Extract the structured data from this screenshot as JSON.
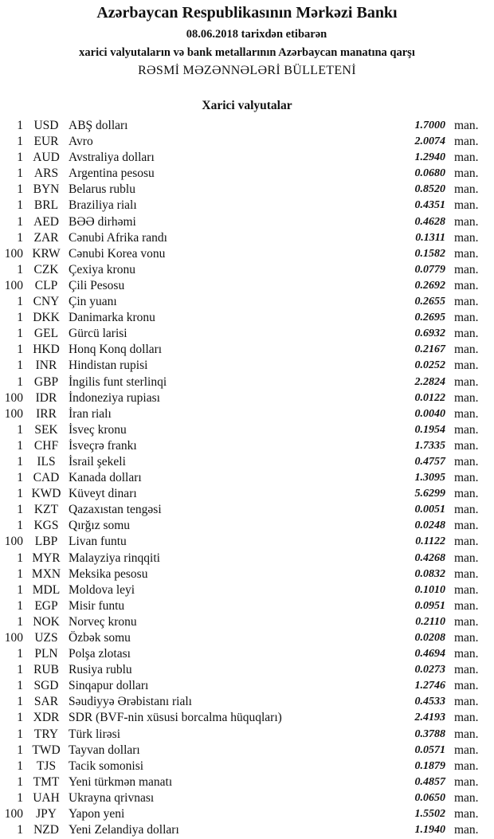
{
  "header": {
    "title": "Azərbaycan Respublikasının Mərkəzi Bankı",
    "date_line": "08.06.2018  tarixdən etibarən",
    "subtitle": "xarici valyutaların və bank metallarının Azərbaycan manatına qarşı",
    "bulletin": "RƏSMİ MƏZƏNNƏLƏRİ BÜLLETENİ"
  },
  "section_title": "Xarici valyutalar",
  "unit_label": "man.",
  "rates": [
    {
      "units": "1",
      "code": "USD",
      "name": "ABŞ dolları",
      "rate": "1.7000"
    },
    {
      "units": "1",
      "code": "EUR",
      "name": "Avro",
      "rate": "2.0074"
    },
    {
      "units": "1",
      "code": "AUD",
      "name": "Avstraliya dolları",
      "rate": "1.2940"
    },
    {
      "units": "1",
      "code": "ARS",
      "name": "Argentina pesosu",
      "rate": "0.0680"
    },
    {
      "units": "1",
      "code": "BYN",
      "name": "Belarus rublu",
      "rate": "0.8520"
    },
    {
      "units": "1",
      "code": "BRL",
      "name": "Braziliya rialı",
      "rate": "0.4351"
    },
    {
      "units": "1",
      "code": "AED",
      "name": "BƏƏ dirhəmi",
      "rate": "0.4628"
    },
    {
      "units": "1",
      "code": "ZAR",
      "name": "Cənubi Afrika randı",
      "rate": "0.1311"
    },
    {
      "units": "100",
      "code": "KRW",
      "name": "Cənubi Korea vonu",
      "rate": "0.1582"
    },
    {
      "units": "1",
      "code": "CZK",
      "name": "Çexiya kronu",
      "rate": "0.0779"
    },
    {
      "units": "100",
      "code": "CLP",
      "name": "Çili Pesosu",
      "rate": "0.2692"
    },
    {
      "units": "1",
      "code": "CNY",
      "name": "Çin yuanı",
      "rate": "0.2655"
    },
    {
      "units": "1",
      "code": "DKK",
      "name": "Danimarka kronu",
      "rate": "0.2695"
    },
    {
      "units": "1",
      "code": "GEL",
      "name": "Gürcü larisi",
      "rate": "0.6932"
    },
    {
      "units": "1",
      "code": "HKD",
      "name": "Honq Konq dolları",
      "rate": "0.2167"
    },
    {
      "units": "1",
      "code": "INR",
      "name": "Hindistan rupisi",
      "rate": "0.0252"
    },
    {
      "units": "1",
      "code": "GBP",
      "name": "İngilis funt sterlinqi",
      "rate": "2.2824"
    },
    {
      "units": "100",
      "code": "IDR",
      "name": "İndoneziya rupiası",
      "rate": "0.0122"
    },
    {
      "units": "100",
      "code": "IRR",
      "name": "İran rialı",
      "rate": "0.0040"
    },
    {
      "units": "1",
      "code": "SEK",
      "name": "İsveç kronu",
      "rate": "0.1954"
    },
    {
      "units": "1",
      "code": "CHF",
      "name": "İsveçrə frankı",
      "rate": "1.7335"
    },
    {
      "units": "1",
      "code": "ILS",
      "name": "İsrail şekeli",
      "rate": "0.4757"
    },
    {
      "units": "1",
      "code": "CAD",
      "name": "Kanada dolları",
      "rate": "1.3095"
    },
    {
      "units": "1",
      "code": "KWD",
      "name": "Küveyt dinarı",
      "rate": "5.6299"
    },
    {
      "units": "1",
      "code": "KZT",
      "name": "Qazaxıstan tengəsi",
      "rate": "0.0051"
    },
    {
      "units": "1",
      "code": "KGS",
      "name": "Qırğız somu",
      "rate": "0.0248"
    },
    {
      "units": "100",
      "code": "LBP",
      "name": "Livan funtu",
      "rate": "0.1122"
    },
    {
      "units": "1",
      "code": "MYR",
      "name": "Malayziya rinqqiti",
      "rate": "0.4268"
    },
    {
      "units": "1",
      "code": "MXN",
      "name": "Meksika pesosu",
      "rate": "0.0832"
    },
    {
      "units": "1",
      "code": "MDL",
      "name": "Moldova leyi",
      "rate": "0.1010"
    },
    {
      "units": "1",
      "code": "EGP",
      "name": "Misir funtu",
      "rate": "0.0951"
    },
    {
      "units": "1",
      "code": "NOK",
      "name": "Norveç kronu",
      "rate": "0.2110"
    },
    {
      "units": "100",
      "code": "UZS",
      "name": "Özbək somu",
      "rate": "0.0208"
    },
    {
      "units": "1",
      "code": "PLN",
      "name": "Polşa zlotası",
      "rate": "0.4694"
    },
    {
      "units": "1",
      "code": "RUB",
      "name": "Rusiya rublu",
      "rate": "0.0273"
    },
    {
      "units": "1",
      "code": "SGD",
      "name": "Sinqapur dolları",
      "rate": "1.2746"
    },
    {
      "units": "1",
      "code": "SAR",
      "name": "Səudiyyə Ərəbistanı rialı",
      "rate": "0.4533"
    },
    {
      "units": "1",
      "code": "XDR",
      "name": "SDR (BVF-nin xüsusi borcalma hüquqları)",
      "rate": "2.4193"
    },
    {
      "units": "1",
      "code": "TRY",
      "name": "Türk lirəsi",
      "rate": "0.3788"
    },
    {
      "units": "1",
      "code": "TWD",
      "name": "Tayvan dolları",
      "rate": "0.0571"
    },
    {
      "units": "1",
      "code": "TJS",
      "name": "Tacik somonisi",
      "rate": "0.1879"
    },
    {
      "units": "1",
      "code": "TMT",
      "name": "Yeni türkmən manatı",
      "rate": "0.4857"
    },
    {
      "units": "1",
      "code": "UAH",
      "name": "Ukrayna qrivnası",
      "rate": "0.0650"
    },
    {
      "units": "100",
      "code": "JPY",
      "name": "Yapon yeni",
      "rate": "1.5502"
    },
    {
      "units": "1",
      "code": "NZD",
      "name": "Yeni Zelandiya dolları",
      "rate": "1.1940"
    }
  ]
}
